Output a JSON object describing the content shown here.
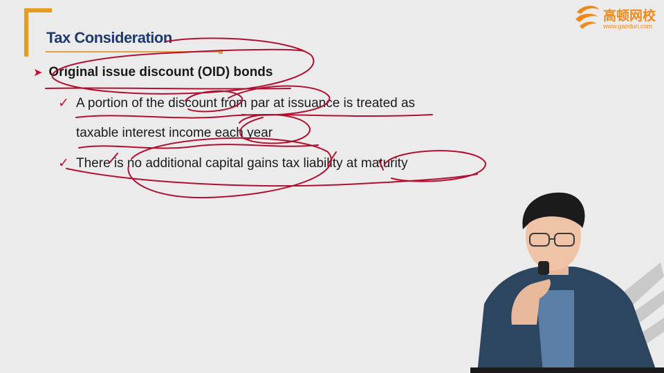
{
  "slide": {
    "title": "Tax Consideration",
    "main_bullet": "Original issue discount (OID) bonds",
    "sub_bullets": [
      {
        "line1": "A portion of the discount from par at issuance is treated as",
        "line2": "taxable interest income each year"
      },
      {
        "line1": "There is no additional capital gains tax liability at maturity"
      }
    ]
  },
  "logo": {
    "name": "高顿网校",
    "url": "www.gaodun.com"
  },
  "colors": {
    "accent_orange": "#e69a1e",
    "title_blue": "#1f3a6b",
    "annotation_red": "#b01030",
    "bullet_red": "#c8102e"
  },
  "icons": [
    "arrow-bullet-icon",
    "checkmark-icon",
    "gaodun-logo-icon"
  ]
}
